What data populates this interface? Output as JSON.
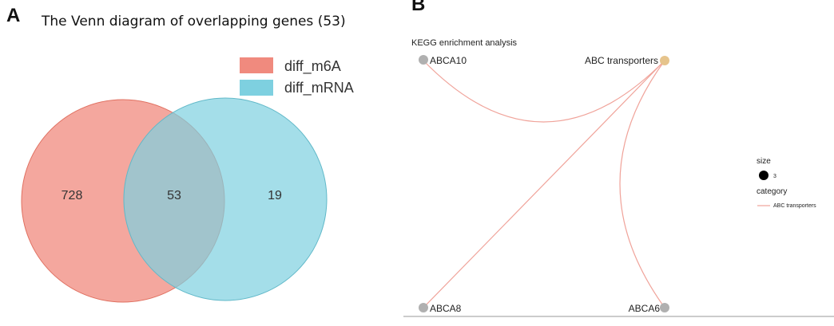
{
  "panel_a": {
    "letter": "A",
    "title": "The Venn diagram of overlapping genes (53)",
    "legend": [
      {
        "label": "diff_m6A",
        "color": "#f08a7e"
      },
      {
        "label": "diff_mRNA",
        "color": "#7ed0e0"
      }
    ],
    "counts": {
      "left_only": "728",
      "overlap": "53",
      "right_only": "19"
    }
  },
  "panel_b": {
    "letter": "B",
    "title": "KEGG enrichment analysis",
    "nodes": [
      {
        "id": "ABCA10",
        "label": "ABCA10",
        "type": "gene"
      },
      {
        "id": "ABC_transporters",
        "label": "ABC transporters",
        "type": "category"
      },
      {
        "id": "ABCA8",
        "label": "ABCA8",
        "type": "gene"
      },
      {
        "id": "ABCA6",
        "label": "ABCA6",
        "type": "gene"
      }
    ],
    "edges": [
      {
        "from": "ABC_transporters",
        "to": "ABCA10"
      },
      {
        "from": "ABC_transporters",
        "to": "ABCA8"
      },
      {
        "from": "ABC_transporters",
        "to": "ABCA6"
      }
    ],
    "colors": {
      "gene_node": "#b0b0b0",
      "category_node": "#e6c48c",
      "edge": "#f0a39a"
    },
    "legend": {
      "size_title": "size",
      "size_value": "3",
      "category_title": "category",
      "category_item": "ABC transporters"
    }
  }
}
